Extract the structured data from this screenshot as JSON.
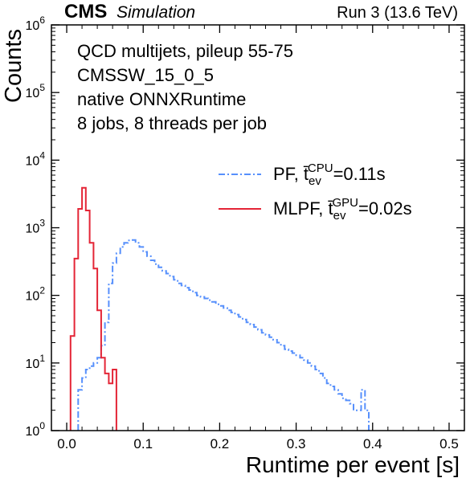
{
  "header": {
    "experiment": "CMS",
    "status": "Simulation",
    "run": "Run 3 (13.6 TeV)"
  },
  "info_lines": [
    "QCD multijets, pileup 55-75",
    "CMSSW_15_0_5",
    "native ONNXRuntime",
    "8 jobs, 8 threads per job"
  ],
  "legend": [
    {
      "name": "PF",
      "t_sup": "CPU",
      "value_text": "=0.11s",
      "color": "#5790fc",
      "style": "dash-dot"
    },
    {
      "name": "MLPF",
      "t_sup": "GPU",
      "value_text": "=0.02s",
      "color": "#e42536",
      "style": "solid"
    }
  ],
  "chart_data": {
    "type": "histogram",
    "xlabel": "Runtime per event [s]",
    "ylabel": "Counts",
    "xlim": [
      -0.02,
      0.52
    ],
    "ylim": [
      1,
      1000000
    ],
    "yscale": "log",
    "x_ticks": [
      "0.0",
      "0.1",
      "0.2",
      "0.3",
      "0.4",
      "0.5"
    ],
    "y_ticks": [
      {
        "base": "10",
        "exp": "0"
      },
      {
        "base": "10",
        "exp": "1"
      },
      {
        "base": "10",
        "exp": "2"
      },
      {
        "base": "10",
        "exp": "3"
      },
      {
        "base": "10",
        "exp": "4"
      },
      {
        "base": "10",
        "exp": "5"
      },
      {
        "base": "10",
        "exp": "6"
      }
    ],
    "bin_width": 0.005,
    "series": [
      {
        "name": "PF",
        "color": "#5790fc",
        "bin_start": 0.015,
        "values": [
          4,
          6,
          8,
          9,
          10,
          12,
          18,
          40,
          150,
          300,
          420,
          520,
          600,
          650,
          660,
          600,
          520,
          440,
          380,
          330,
          290,
          260,
          230,
          210,
          190,
          170,
          150,
          140,
          130,
          120,
          110,
          100,
          95,
          90,
          85,
          80,
          74,
          70,
          65,
          60,
          56,
          52,
          48,
          44,
          40,
          37,
          34,
          31,
          28,
          26,
          24,
          22,
          20,
          18,
          16,
          15,
          14,
          13,
          12,
          11,
          10,
          9,
          8,
          7,
          6,
          5,
          4.5,
          4,
          3.5,
          3,
          2.8,
          2.5,
          2,
          2,
          4,
          2
        ]
      },
      {
        "name": "MLPF",
        "color": "#e42536",
        "bin_start": 0.005,
        "values": [
          25,
          350,
          1900,
          3900,
          1800,
          600,
          250,
          60,
          12,
          7,
          5,
          8
        ]
      }
    ]
  }
}
